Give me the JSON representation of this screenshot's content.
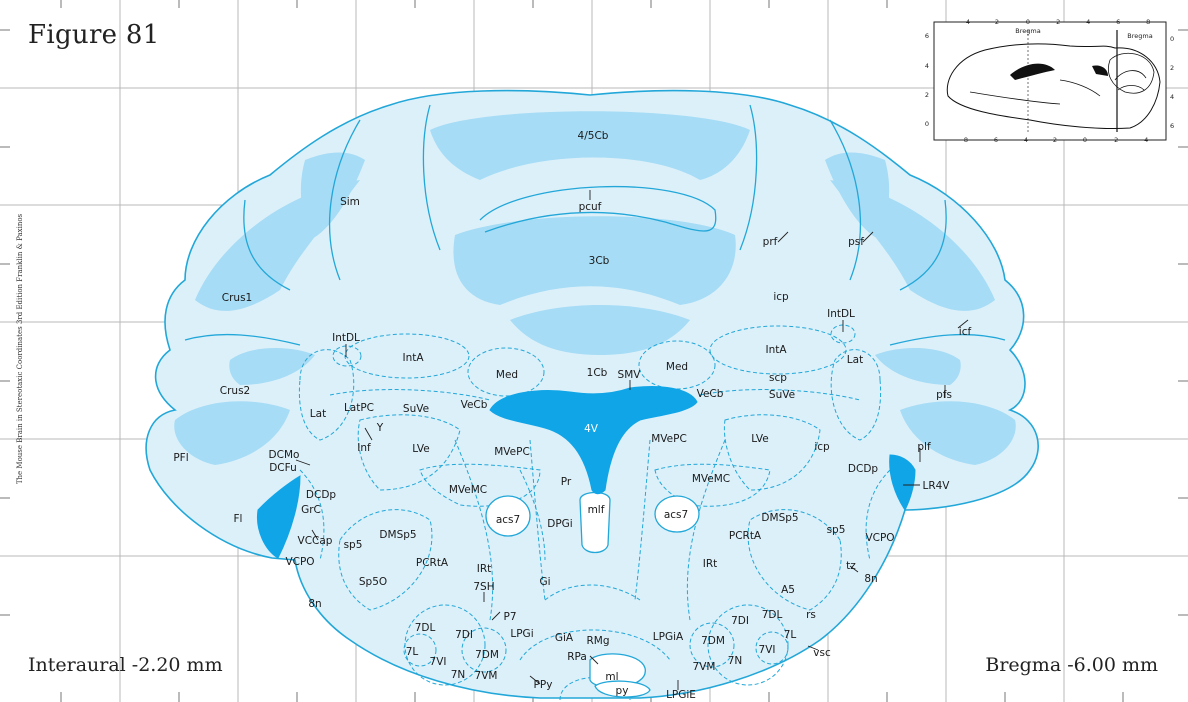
{
  "figure": {
    "title": "Figure 81",
    "interaural": "Interaural -2.20 mm",
    "bregma": "Bregma -6.00 mm",
    "side_credit": "The Mouse Brain in Stereotaxic Coordinates 3rd Edition Franklin & Paxinos"
  },
  "colors": {
    "grid": "#b9b9b9",
    "outline": "#22a7d8",
    "white_matter": "#dcf0fa",
    "granular_layer": "#a6dcf5",
    "ventricle": "#10a5e6",
    "text": "#1a1a1a"
  },
  "inset": {
    "bregma_label_top": "Bregma",
    "bregma_label_right": "Bregma",
    "top_ticks": [
      "4",
      "2",
      "0",
      "-2",
      "-4",
      "-6",
      "-8"
    ],
    "bottom_ticks": [
      "8",
      "6",
      "4",
      "2",
      "0",
      "-2",
      "-4"
    ],
    "left_ticks": [
      "6",
      "4",
      "2",
      "0"
    ],
    "right_ticks": [
      "0",
      "2",
      "4",
      "6"
    ]
  },
  "labels": {
    "cb45": "4/5Cb",
    "pcuf": "pcuf",
    "cb3": "3Cb",
    "sim": "Sim",
    "crus1": "Crus1",
    "crus2": "Crus2",
    "pfl": "PFl",
    "fl": "Fl",
    "prf": "prf",
    "psf": "psf",
    "icp_top": "icp",
    "intdl_r": "IntDL",
    "icf": "icf",
    "lat_r": "Lat",
    "inta_r": "IntA",
    "med_r": "Med",
    "scp": "scp",
    "suve_r": "SuVe",
    "vecb_r": "VeCb",
    "pfs": "pfs",
    "intdl_l": "IntDL",
    "inta_l": "IntA",
    "med_l": "Med",
    "cb1": "1Cb",
    "smv": "SMV",
    "lat_l": "Lat",
    "latpc": "LatPC",
    "suve_l": "SuVe",
    "vecb_l": "VeCb",
    "y": "Y",
    "inf": "Inf",
    "lve_l": "LVe",
    "v4": "4V",
    "mvepc_r": "MVePC",
    "mvepc_l": "MVePC",
    "lve_r": "LVe",
    "icp_r": "icp",
    "plf": "plf",
    "dcdp_r": "DCDp",
    "lr4v": "LR4V",
    "dcmo": "DCMo",
    "dcfu": "DCFu",
    "dcdp_l": "DCDp",
    "grc": "GrC",
    "vccap": "VCCap",
    "mvemc_l": "MVeMC",
    "pr": "Pr",
    "mvemc_r": "MVeMC",
    "acs7_l": "acs7",
    "dpgi": "DPGi",
    "mlf": "mlf",
    "acs7_r": "acs7",
    "dmsp5_r": "DMSp5",
    "sp5_r": "sp5",
    "vcpo_r": "VCPO",
    "sp5_l": "sp5",
    "dmsp5_l": "DMSp5",
    "pcrta_l": "PCRtA",
    "pcrta_r": "PCRtA",
    "vcpo_l": "VCPO",
    "irt_l": "IRt",
    "irt_r": "IRt",
    "sp5o": "Sp5O",
    "gi": "Gi",
    "sh7": "7SH",
    "tz": "tz",
    "n8_r": "8n",
    "a5": "A5",
    "n8_l": "8n",
    "p7": "P7",
    "dl7_l": "7DL",
    "di7_l": "7DI",
    "lpgi": "LPGi",
    "gia": "GiA",
    "rmg": "RMg",
    "lpgia": "LPGiA",
    "di7_r": "7DI",
    "dl7_r": "7DL",
    "rs": "rs",
    "l7_l": "7L",
    "vi7_l": "7VI",
    "dm7_l": "7DM",
    "rpa": "RPa",
    "dm7_r": "7DM",
    "l7_r": "7L",
    "vi7_r": "7VI",
    "vsc": "vsc",
    "n7_l": "7N",
    "vm7_l": "7VM",
    "ppy": "PPy",
    "ml": "ml",
    "vm7_r": "7VM",
    "n7_r": "7N",
    "py": "py",
    "lpgie": "LPGiE"
  }
}
